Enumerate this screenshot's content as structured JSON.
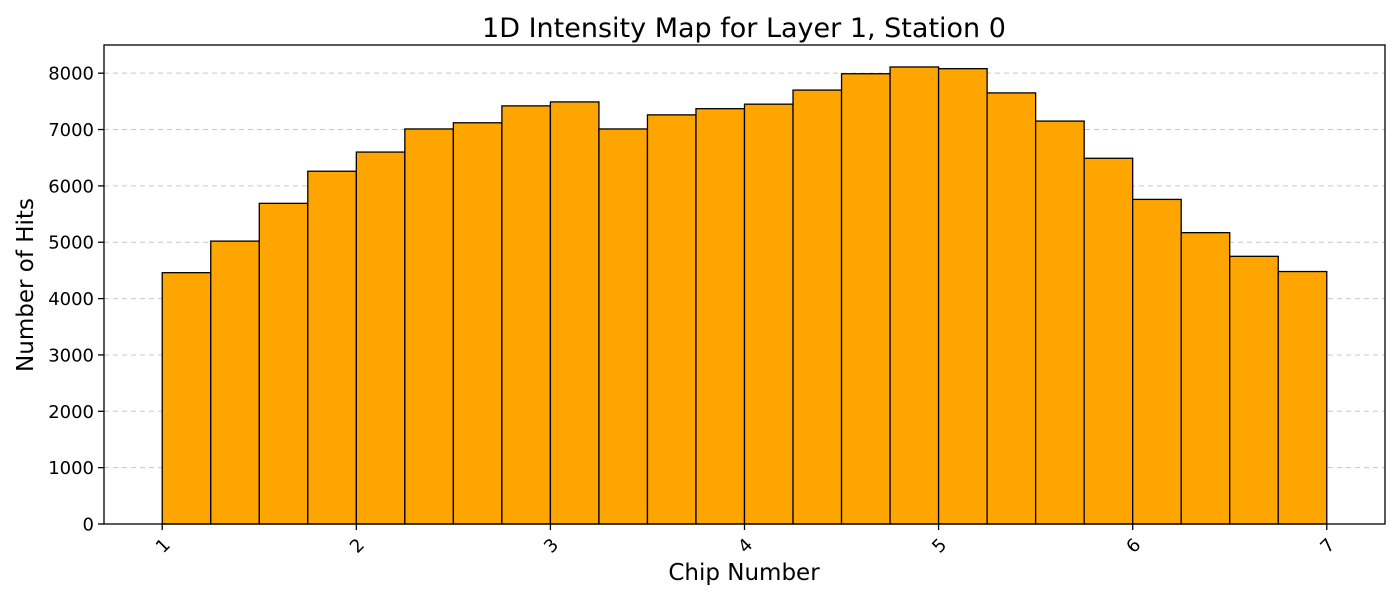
{
  "chart_data": {
    "type": "bar",
    "title": "1D Intensity Map for Layer 1, Station 0",
    "xlabel": "Chip Number",
    "ylabel": "Number of Hits",
    "bin_edges": [
      1,
      1.25,
      1.5,
      1.75,
      2,
      2.25,
      2.5,
      2.75,
      3,
      3.25,
      3.5,
      3.75,
      4,
      4.25,
      4.5,
      4.75,
      5,
      5.25,
      5.5,
      5.75,
      6,
      6.25,
      6.5,
      6.75,
      7
    ],
    "values": [
      4460,
      5020,
      5690,
      6260,
      6600,
      7010,
      7120,
      7420,
      7490,
      7010,
      7260,
      7370,
      7450,
      7700,
      7990,
      8110,
      8080,
      7650,
      7150,
      6490,
      5760,
      5170,
      4750,
      4480
    ],
    "xticks": [
      "1",
      "2",
      "3",
      "4",
      "5",
      "6",
      "7"
    ],
    "yticks": [
      "0",
      "1000",
      "2000",
      "3000",
      "4000",
      "5000",
      "6000",
      "7000",
      "8000"
    ],
    "xlim": [
      0.7,
      7.3
    ],
    "ylim": [
      0,
      8500
    ],
    "grid": "y-dashed",
    "bar_color": "#ffa500",
    "edge_color": "#000000"
  }
}
